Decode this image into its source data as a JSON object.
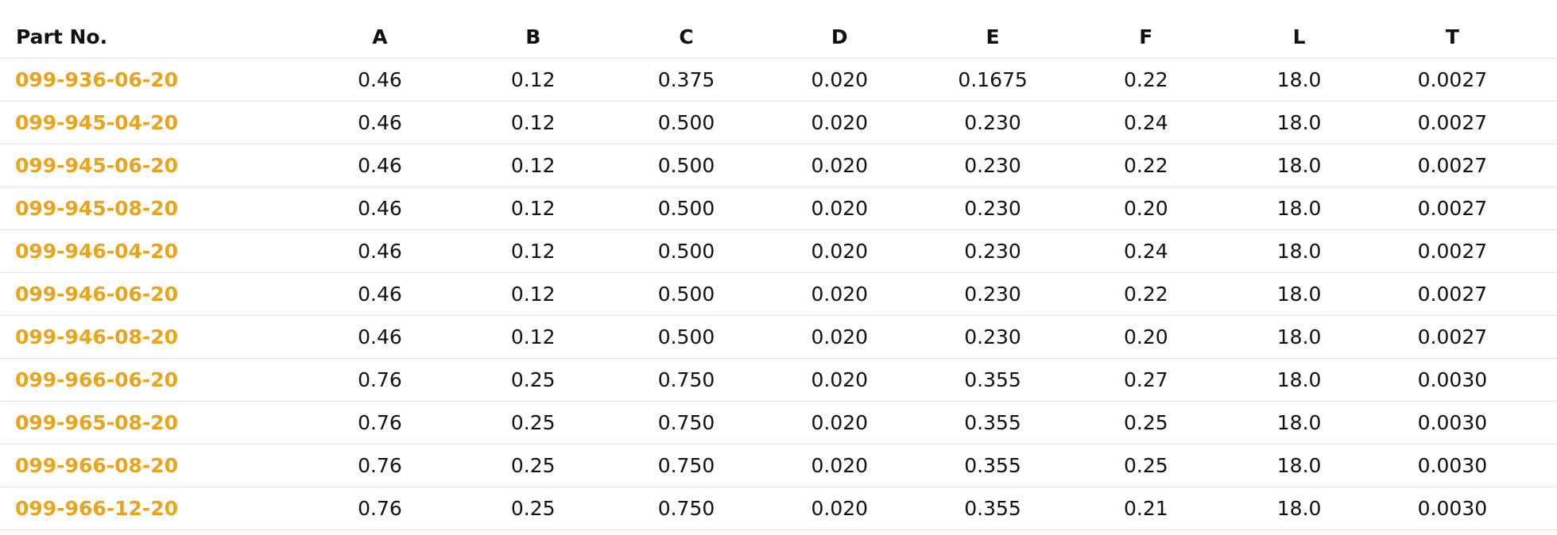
{
  "table": {
    "headers": [
      "Part No.",
      "A",
      "B",
      "C",
      "D",
      "E",
      "F",
      "L",
      "T"
    ],
    "rows": [
      {
        "part": "099-936-06-20",
        "values": [
          "0.46",
          "0.12",
          "0.375",
          "0.020",
          "0.1675",
          "0.22",
          "18.0",
          "0.0027"
        ]
      },
      {
        "part": "099-945-04-20",
        "values": [
          "0.46",
          "0.12",
          "0.500",
          "0.020",
          "0.230",
          "0.24",
          "18.0",
          "0.0027"
        ]
      },
      {
        "part": "099-945-06-20",
        "values": [
          "0.46",
          "0.12",
          "0.500",
          "0.020",
          "0.230",
          "0.22",
          "18.0",
          "0.0027"
        ]
      },
      {
        "part": "099-945-08-20",
        "values": [
          "0.46",
          "0.12",
          "0.500",
          "0.020",
          "0.230",
          "0.20",
          "18.0",
          "0.0027"
        ]
      },
      {
        "part": "099-946-04-20",
        "values": [
          "0.46",
          "0.12",
          "0.500",
          "0.020",
          "0.230",
          "0.24",
          "18.0",
          "0.0027"
        ]
      },
      {
        "part": "099-946-06-20",
        "values": [
          "0.46",
          "0.12",
          "0.500",
          "0.020",
          "0.230",
          "0.22",
          "18.0",
          "0.0027"
        ]
      },
      {
        "part": "099-946-08-20",
        "values": [
          "0.46",
          "0.12",
          "0.500",
          "0.020",
          "0.230",
          "0.20",
          "18.0",
          "0.0027"
        ]
      },
      {
        "part": "099-966-06-20",
        "values": [
          "0.76",
          "0.25",
          "0.750",
          "0.020",
          "0.355",
          "0.27",
          "18.0",
          "0.0030"
        ]
      },
      {
        "part": "099-965-08-20",
        "values": [
          "0.76",
          "0.25",
          "0.750",
          "0.020",
          "0.355",
          "0.25",
          "18.0",
          "0.0030"
        ]
      },
      {
        "part": "099-966-08-20",
        "values": [
          "0.76",
          "0.25",
          "0.750",
          "0.020",
          "0.355",
          "0.25",
          "18.0",
          "0.0030"
        ]
      },
      {
        "part": "099-966-12-20",
        "values": [
          "0.76",
          "0.25",
          "0.750",
          "0.020",
          "0.355",
          "0.21",
          "18.0",
          "0.0030"
        ]
      }
    ]
  },
  "colors": {
    "part_link": "#eaa31b",
    "text": "#111111",
    "row_divider": "#e3e3e3"
  }
}
